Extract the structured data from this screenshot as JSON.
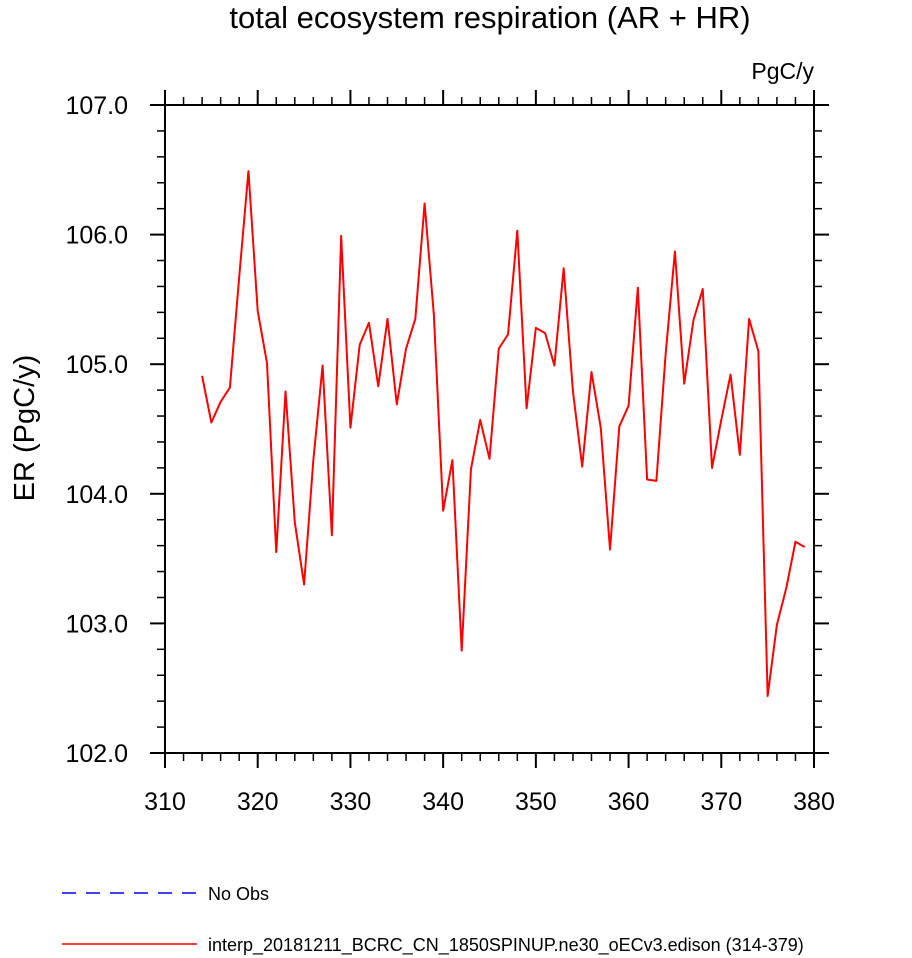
{
  "chart_data": {
    "type": "line",
    "title": "total ecosystem respiration (AR + HR)",
    "units_label": "PgC/y",
    "ylabel": "ER  (PgC/y)",
    "xlabel": "",
    "xlim": [
      310,
      380
    ],
    "ylim": [
      102.0,
      107.0
    ],
    "x_ticks": [
      {
        "value": 310,
        "label": "310"
      },
      {
        "value": 320,
        "label": "320"
      },
      {
        "value": 330,
        "label": "330"
      },
      {
        "value": 340,
        "label": "340"
      },
      {
        "value": 350,
        "label": "350"
      },
      {
        "value": 360,
        "label": "360"
      },
      {
        "value": 370,
        "label": "370"
      },
      {
        "value": 380,
        "label": "380"
      }
    ],
    "y_ticks": [
      {
        "value": 102.0,
        "label": "102.0"
      },
      {
        "value": 103.0,
        "label": "103.0"
      },
      {
        "value": 104.0,
        "label": "104.0"
      },
      {
        "value": 105.0,
        "label": "105.0"
      },
      {
        "value": 106.0,
        "label": "106.0"
      },
      {
        "value": 107.0,
        "label": "107.0"
      }
    ],
    "x_minor_step": 2,
    "y_minor_step": 0.2,
    "grid": false,
    "series": [
      {
        "name": "interp_20181211_BCRC_CN_1850SPINUP.ne30_oECv3.edison (314-379)",
        "color": "#ff0000",
        "dash": "solid",
        "x": [
          314,
          315,
          316,
          317,
          318,
          319,
          320,
          321,
          322,
          323,
          324,
          325,
          326,
          327,
          328,
          329,
          330,
          331,
          332,
          333,
          334,
          335,
          336,
          337,
          338,
          339,
          340,
          341,
          342,
          343,
          344,
          345,
          346,
          347,
          348,
          349,
          350,
          351,
          352,
          353,
          354,
          355,
          356,
          357,
          358,
          359,
          360,
          361,
          362,
          363,
          364,
          365,
          366,
          367,
          368,
          369,
          370,
          371,
          372,
          373,
          374,
          375,
          376,
          377,
          378,
          379
        ],
        "y": [
          104.91,
          104.55,
          104.71,
          104.82,
          105.67,
          106.49,
          105.41,
          105.01,
          103.55,
          104.79,
          103.78,
          103.3,
          104.26,
          104.99,
          103.68,
          105.99,
          104.51,
          105.15,
          105.32,
          104.83,
          105.35,
          104.69,
          105.12,
          105.35,
          106.24,
          105.38,
          103.87,
          104.26,
          102.79,
          104.19,
          104.57,
          104.27,
          105.12,
          105.23,
          106.03,
          104.66,
          105.28,
          105.24,
          104.99,
          105.74,
          104.79,
          104.21,
          104.94,
          104.51,
          103.57,
          104.52,
          104.68,
          105.59,
          104.11,
          104.1,
          105.08,
          105.87,
          104.85,
          105.34,
          105.58,
          104.2,
          104.57,
          104.92,
          104.3,
          105.35,
          105.1,
          102.44,
          102.99,
          103.27,
          103.63,
          103.59
        ]
      }
    ],
    "legend": {
      "placement": "bottom",
      "entries": [
        {
          "label": "No Obs",
          "color": "#0000ff",
          "dash": "dashed"
        },
        {
          "label": "interp_20181211_BCRC_CN_1850SPINUP.ne30_oECv3.edison (314-379)",
          "color": "#ff0000",
          "dash": "solid"
        }
      ]
    }
  }
}
